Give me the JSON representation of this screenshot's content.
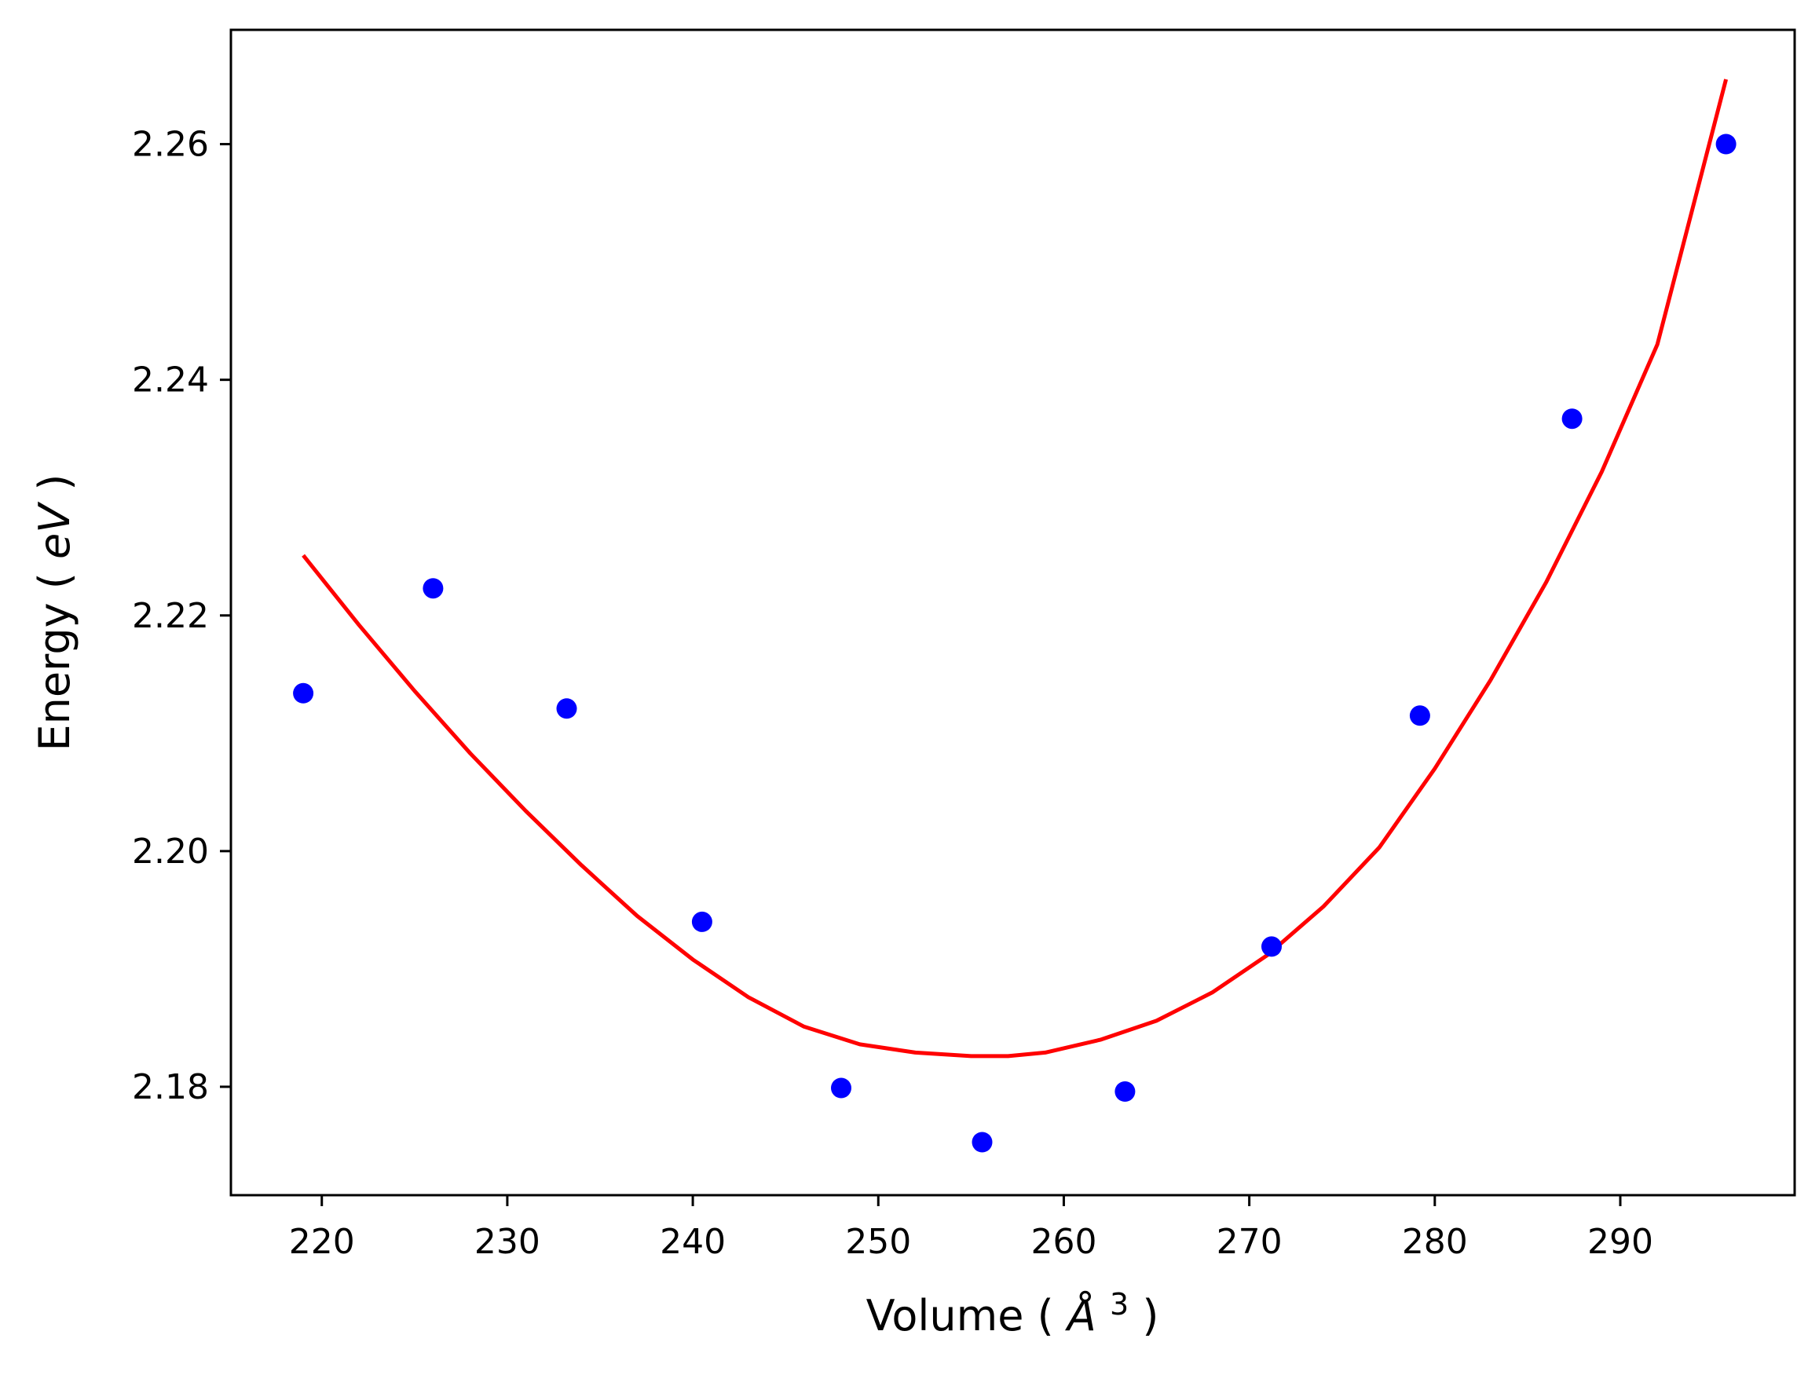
{
  "chart_data": {
    "type": "scatter",
    "title": "",
    "xlabel": "Volume",
    "xlabel_math": "Å",
    "xlabel_superscript": "3",
    "ylabel": "Energy",
    "ylabel_math": "eV",
    "xlim": [
      215.1,
      299.4
    ],
    "ylim": [
      2.1708,
      2.2697
    ],
    "grid": false,
    "legend": "none",
    "x_ticks": [
      220,
      230,
      240,
      250,
      260,
      270,
      280,
      290
    ],
    "x_tick_labels": [
      "220",
      "230",
      "240",
      "250",
      "260",
      "270",
      "280",
      "290"
    ],
    "y_ticks": [
      2.18,
      2.2,
      2.22,
      2.24,
      2.26
    ],
    "y_tick_labels": [
      "2.18",
      "2.20",
      "2.22",
      "2.24",
      "2.26"
    ],
    "series": [
      {
        "kind": "points",
        "color": "#0000ff",
        "x": [
          219.0,
          226.0,
          233.2,
          240.5,
          248.0,
          255.6,
          263.3,
          271.2,
          279.2,
          287.4,
          295.7
        ],
        "y": [
          2.2134,
          2.2223,
          2.2121,
          2.194,
          2.1799,
          2.1753,
          2.1796,
          2.1919,
          2.2115,
          2.2367,
          2.26
        ]
      },
      {
        "kind": "fit-curve",
        "color": "#ff0000",
        "x": [
          219.0,
          222.0,
          225.0,
          228.0,
          231.0,
          234.0,
          237.0,
          240.0,
          243.0,
          246.0,
          249.0,
          252.0,
          255.0,
          257.0,
          259.0,
          262.0,
          265.0,
          268.0,
          271.0,
          274.0,
          277.0,
          280.0,
          283.0,
          286.0,
          289.0,
          292.0,
          295.7
        ],
        "y": [
          2.2251,
          2.2192,
          2.2136,
          2.2083,
          2.2034,
          2.1988,
          2.1945,
          2.1908,
          2.1876,
          2.1851,
          2.1836,
          2.1829,
          2.1826,
          2.1826,
          2.1829,
          2.184,
          2.1856,
          2.188,
          2.1912,
          2.1953,
          2.2003,
          2.207,
          2.2145,
          2.2228,
          2.2322,
          2.243,
          2.2655
        ]
      }
    ]
  }
}
